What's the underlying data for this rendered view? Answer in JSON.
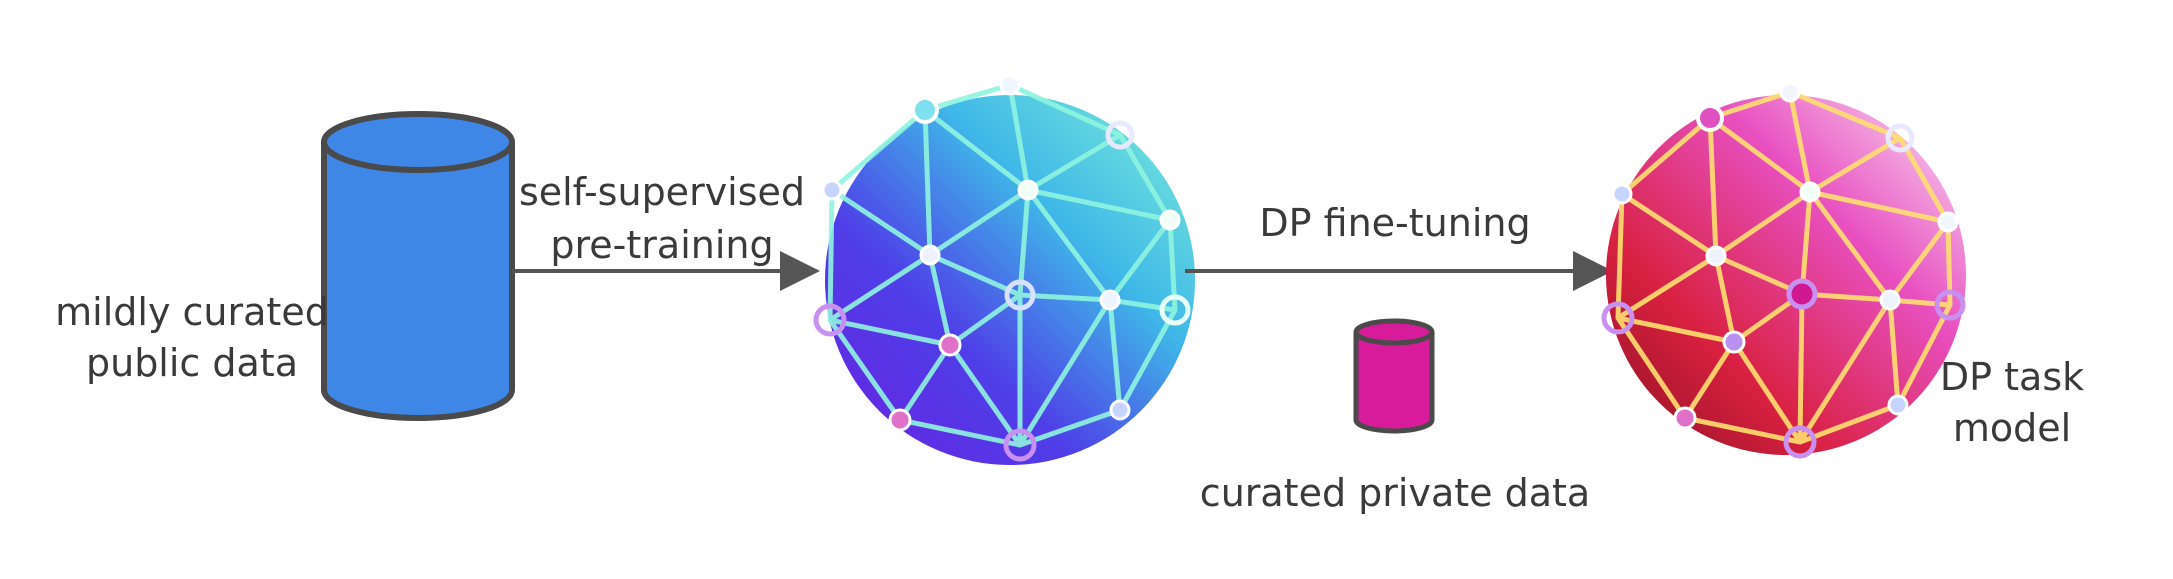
{
  "labels": {
    "public_data_line1": "mildly curated",
    "public_data_line2": "public data",
    "pretraining_line1": "self-supervised",
    "pretraining_line2": "pre-training",
    "finetuning": "DP fine-tuning",
    "private_data": "curated private data",
    "task_model_line1": "DP task",
    "task_model_line2": "model"
  },
  "colors": {
    "public_cylinder": "#3f87e6",
    "private_cylinder": "#d81b9a",
    "outline": "#4a4a4a",
    "arrow": "#555555",
    "text": "#3a3a3a"
  },
  "icons": {
    "public_data": "database-cylinder-icon",
    "private_data": "database-cylinder-icon",
    "pretrained_model": "neural-network-sphere-icon",
    "task_model": "neural-network-sphere-icon"
  }
}
